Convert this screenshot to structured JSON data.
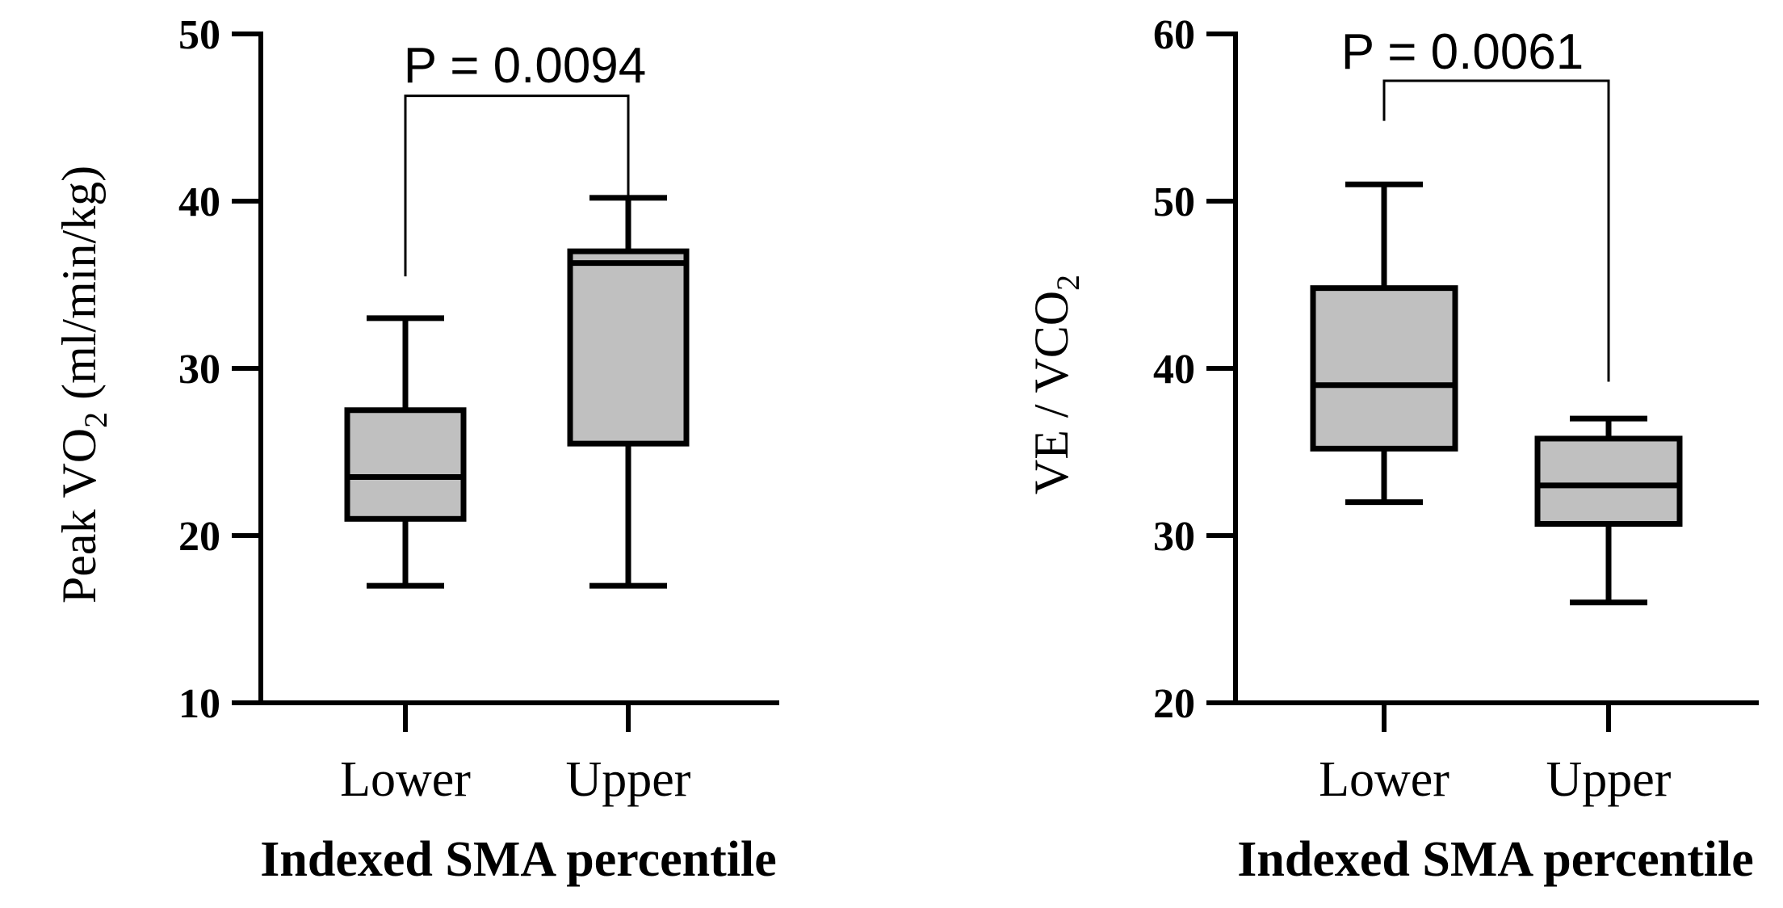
{
  "chart_data": [
    {
      "type": "box",
      "ylabel_main": "Peak VO",
      "ylabel_sub": "2",
      "ylabel_unit": "(ml/min/kg)",
      "xlabel": "Indexed SMA percentile",
      "ylim": [
        10,
        50
      ],
      "yticks": [
        10,
        20,
        30,
        40,
        50
      ],
      "categories": [
        "Lower",
        "Upper"
      ],
      "boxes": [
        {
          "category": "Lower",
          "min": 17,
          "q1": 21,
          "median": 23.5,
          "q3": 27.5,
          "max": 33
        },
        {
          "category": "Upper",
          "min": 17,
          "q1": 25.5,
          "median": 36.3,
          "q3": 37,
          "max": 40.2
        }
      ],
      "significance": {
        "label": "P = 0.0094",
        "bracket_y": 46.3,
        "left_end": 35.5,
        "right_end": 38.8
      }
    },
    {
      "type": "box",
      "ylabel_main": "VE / VCO",
      "ylabel_sub": "2",
      "ylabel_unit": "",
      "xlabel": "Indexed SMA percentile",
      "ylim": [
        20,
        60
      ],
      "yticks": [
        20,
        30,
        40,
        50,
        60
      ],
      "categories": [
        "Lower",
        "Upper"
      ],
      "boxes": [
        {
          "category": "Lower",
          "min": 32,
          "q1": 35.2,
          "median": 39,
          "q3": 44.8,
          "max": 51
        },
        {
          "category": "Upper",
          "min": 26,
          "q1": 30.7,
          "median": 33,
          "q3": 35.8,
          "max": 37
        }
      ],
      "significance": {
        "label": "P = 0.0061",
        "bracket_y": 57.2,
        "left_end": 54.8,
        "right_end": 39.2
      }
    }
  ]
}
